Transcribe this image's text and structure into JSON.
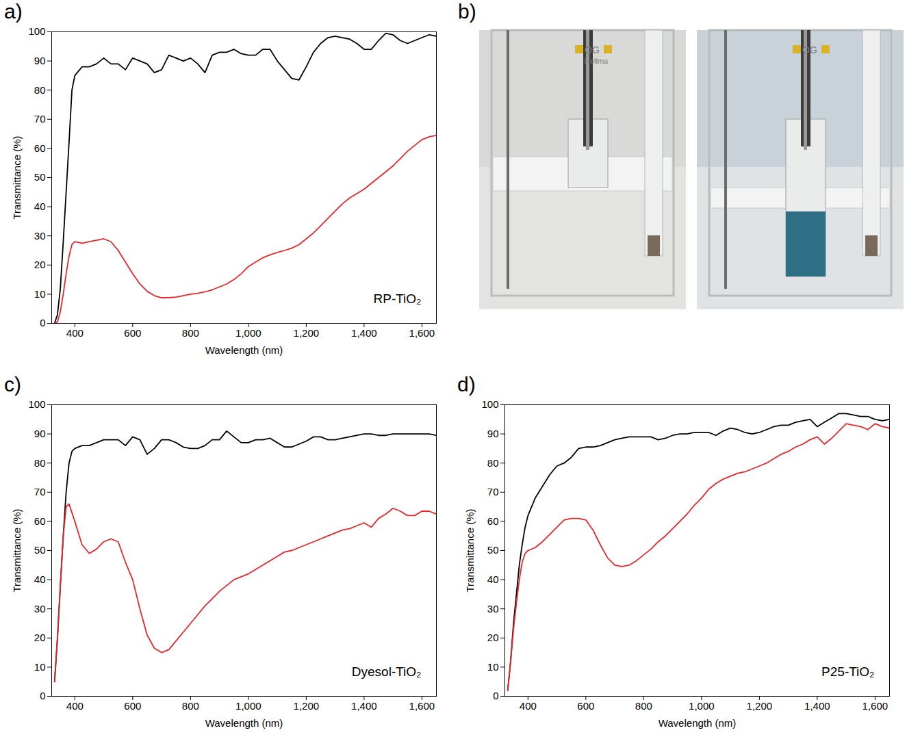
{
  "chart_data": [
    {
      "type": "line",
      "panel_label": "a)",
      "annotation": "RP-TiO₂",
      "xlabel": "Wavelength (nm)",
      "ylabel": "Transmittance (%)",
      "xlim": [
        320,
        1650
      ],
      "xticks": [
        400,
        600,
        800,
        1000,
        1200,
        1400,
        1600
      ],
      "ylim": [
        0,
        100
      ],
      "yticks": [
        0,
        10,
        20,
        30,
        40,
        50,
        60,
        70,
        80,
        90,
        100
      ],
      "grid": false,
      "x": [
        330,
        340,
        350,
        360,
        370,
        380,
        390,
        400,
        425,
        450,
        475,
        500,
        525,
        550,
        575,
        600,
        625,
        650,
        675,
        700,
        725,
        750,
        775,
        800,
        825,
        850,
        875,
        900,
        925,
        950,
        975,
        1000,
        1025,
        1050,
        1075,
        1100,
        1125,
        1150,
        1175,
        1200,
        1225,
        1250,
        1275,
        1300,
        1325,
        1350,
        1375,
        1400,
        1425,
        1450,
        1475,
        1500,
        1525,
        1550,
        1575,
        1600,
        1625,
        1650
      ],
      "series": [
        {
          "color": "#000000",
          "values": [
            0,
            3,
            12,
            28,
            45,
            62,
            80,
            85,
            88,
            88,
            89,
            91,
            89,
            89,
            87,
            91,
            90,
            89,
            86,
            87,
            92,
            91,
            90,
            91,
            89,
            86,
            92,
            93,
            93,
            94,
            92.5,
            92,
            92,
            94,
            94,
            90,
            87,
            84,
            83.5,
            88,
            93,
            96,
            98,
            98.5,
            98,
            97.5,
            96,
            94,
            94,
            97,
            99.5,
            99,
            97,
            96,
            97,
            98,
            99,
            98.5
          ]
        },
        {
          "color": "#e8262b",
          "values": [
            0,
            0.5,
            4,
            10,
            17,
            23,
            27,
            28,
            27.5,
            28,
            28.5,
            29,
            28,
            25,
            21,
            17,
            13.5,
            11,
            9.5,
            8.8,
            8.8,
            9,
            9.5,
            10,
            10.3,
            10.8,
            11.5,
            12.5,
            13.5,
            15,
            17,
            19.5,
            21,
            22.5,
            23.5,
            24.3,
            25,
            25.8,
            27,
            29,
            31,
            33.5,
            36,
            38.5,
            41,
            43,
            44.5,
            46,
            48,
            50,
            52,
            54,
            56.5,
            59,
            61,
            63,
            64,
            64.5
          ]
        }
      ]
    },
    {
      "type": "line",
      "panel_label": "c)",
      "annotation": "Dyesol-TiO₂",
      "xlabel": "Wavelength (nm)",
      "ylabel": "Transmittance (%)",
      "xlim": [
        320,
        1650
      ],
      "xticks": [
        400,
        600,
        800,
        1000,
        1200,
        1400,
        1600
      ],
      "ylim": [
        0,
        100
      ],
      "yticks": [
        0,
        10,
        20,
        30,
        40,
        50,
        60,
        70,
        80,
        90,
        100
      ],
      "grid": false,
      "x": [
        330,
        340,
        350,
        360,
        370,
        380,
        390,
        400,
        425,
        450,
        475,
        500,
        525,
        550,
        575,
        600,
        625,
        650,
        675,
        700,
        725,
        750,
        775,
        800,
        825,
        850,
        875,
        900,
        925,
        950,
        975,
        1000,
        1025,
        1050,
        1075,
        1100,
        1125,
        1150,
        1175,
        1200,
        1225,
        1250,
        1275,
        1300,
        1325,
        1350,
        1375,
        1400,
        1425,
        1450,
        1475,
        1500,
        1525,
        1550,
        1575,
        1600,
        1625,
        1650
      ],
      "series": [
        {
          "color": "#000000",
          "values": [
            5,
            20,
            38,
            55,
            70,
            80,
            84,
            85,
            86,
            86,
            87,
            88,
            88,
            88,
            86,
            89,
            88,
            83,
            85,
            88,
            88,
            87,
            85.5,
            85,
            85,
            86,
            88,
            88,
            91,
            89,
            87,
            87,
            88,
            88,
            88.5,
            87,
            85.5,
            85.5,
            86.5,
            87.5,
            89,
            89,
            88,
            88,
            88.5,
            89,
            89.5,
            90,
            90,
            89.5,
            89.5,
            90,
            90,
            90,
            90,
            90,
            90,
            89.5
          ]
        },
        {
          "color": "#e8262b",
          "values": [
            5,
            20,
            38,
            55,
            65,
            66,
            63,
            60,
            52,
            49,
            50.5,
            53,
            54,
            53,
            46,
            40,
            30,
            21,
            16.5,
            15,
            16,
            19,
            22,
            25,
            28,
            31,
            33.5,
            36,
            38,
            40,
            41,
            42,
            43.5,
            45,
            46.5,
            48,
            49.5,
            50,
            51,
            52,
            53,
            54,
            55,
            56,
            57,
            57.5,
            58.5,
            59.5,
            58,
            61,
            62.5,
            64.5,
            63.5,
            62,
            62,
            63.5,
            63.5,
            62.5
          ]
        }
      ]
    },
    {
      "type": "line",
      "panel_label": "d)",
      "annotation": "P25-TiO₂",
      "xlabel": "Wavelength (nm)",
      "ylabel": "Transmittance (%)",
      "xlim": [
        320,
        1650
      ],
      "xticks": [
        400,
        600,
        800,
        1000,
        1200,
        1400,
        1600
      ],
      "ylim": [
        0,
        100
      ],
      "yticks": [
        0,
        10,
        20,
        30,
        40,
        50,
        60,
        70,
        80,
        90,
        100
      ],
      "grid": false,
      "x": [
        330,
        340,
        350,
        360,
        370,
        380,
        390,
        400,
        425,
        450,
        475,
        500,
        525,
        550,
        575,
        600,
        625,
        650,
        675,
        700,
        725,
        750,
        775,
        800,
        825,
        850,
        875,
        900,
        925,
        950,
        975,
        1000,
        1025,
        1050,
        1075,
        1100,
        1125,
        1150,
        1175,
        1200,
        1225,
        1250,
        1275,
        1300,
        1325,
        1350,
        1375,
        1400,
        1425,
        1450,
        1475,
        1500,
        1525,
        1550,
        1575,
        1600,
        1625,
        1650
      ],
      "series": [
        {
          "color": "#000000",
          "values": [
            2,
            12,
            25,
            35,
            45,
            52,
            58,
            62,
            68,
            72,
            76,
            79,
            80,
            82,
            85,
            85.5,
            85.5,
            86,
            87,
            88,
            88.5,
            89,
            89,
            89,
            89,
            88,
            88.5,
            89.5,
            90,
            90,
            90.5,
            90.5,
            90.5,
            89.5,
            91,
            92,
            91.5,
            90.5,
            90,
            90.5,
            91.5,
            92.5,
            93,
            93,
            94,
            94.5,
            95,
            92.5,
            94,
            95.5,
            97,
            97,
            96.5,
            96,
            96,
            95,
            94.5,
            95
          ]
        },
        {
          "color": "#e8262b",
          "values": [
            2,
            12,
            23,
            32,
            40,
            46,
            49,
            50,
            51,
            53,
            55.5,
            58,
            60.5,
            61,
            61,
            60.5,
            57,
            52,
            47.5,
            45,
            44.5,
            45,
            46.5,
            48.5,
            50.5,
            53,
            55,
            57.5,
            60,
            62.5,
            65.5,
            68,
            71,
            73,
            74.5,
            75.5,
            76.5,
            77,
            78,
            79,
            80,
            81.5,
            83,
            84,
            85.5,
            86.5,
            88,
            89,
            86.5,
            88.5,
            91,
            93.5,
            93,
            92.5,
            91.5,
            93.5,
            92.5,
            92
          ]
        }
      ]
    }
  ],
  "photo_panel": {
    "panel_label": "b)",
    "photos": [
      {
        "texts": [
          "OG",
          "Hellma"
        ]
      },
      {
        "texts": [
          "OG"
        ]
      }
    ]
  }
}
